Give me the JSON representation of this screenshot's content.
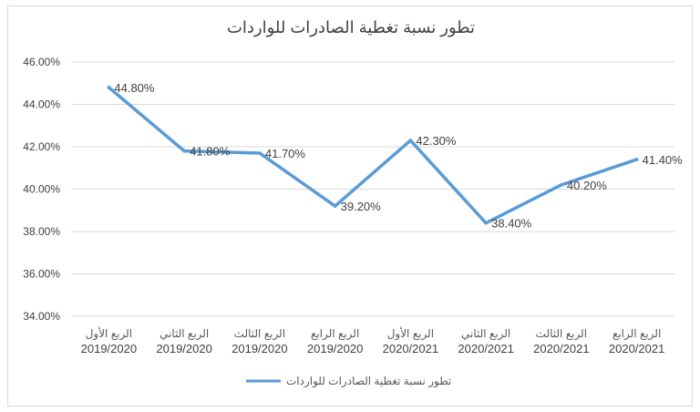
{
  "chart_data": {
    "type": "line",
    "title": "تطور نسبة تغطية الصادرات للواردات",
    "categories": [
      {
        "label": "الربع الأول",
        "year": "2019/2020"
      },
      {
        "label": "الربع الثاني",
        "year": "2019/2020"
      },
      {
        "label": "الربع الثالث",
        "year": "2019/2020"
      },
      {
        "label": "الربع الرابع",
        "year": "2019/2020"
      },
      {
        "label": "الربع الأول",
        "year": "2020/2021"
      },
      {
        "label": "الربع الثاني",
        "year": "2020/2021"
      },
      {
        "label": "الربع الثالث",
        "year": "2020/2021"
      },
      {
        "label": "الربع الرابع",
        "year": "2020/2021"
      }
    ],
    "series": [
      {
        "name": "تطور نسبة تغطية الصادرات للواردات",
        "values": [
          44.8,
          41.8,
          41.7,
          39.2,
          42.3,
          38.4,
          40.2,
          41.4
        ],
        "labels": [
          "44.80%",
          "41.80%",
          "41.70%",
          "39.20%",
          "42.30%",
          "38.40%",
          "40.20%",
          "41.40%"
        ],
        "color": "#5b9bd5"
      }
    ],
    "ylim": [
      34,
      46
    ],
    "yticks": [
      "34.00%",
      "36.00%",
      "38.00%",
      "40.00%",
      "42.00%",
      "44.00%",
      "46.00%"
    ],
    "grid": true,
    "legend_position": "bottom",
    "gridColor": "#d9d9d9"
  }
}
